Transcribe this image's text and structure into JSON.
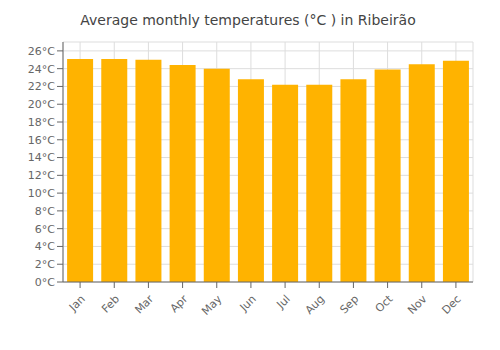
{
  "chart_data": {
    "type": "bar",
    "title": "Average monthly temperatures (°C ) in Ribeirão",
    "categories": [
      "Jan",
      "Feb",
      "Mar",
      "Apr",
      "May",
      "Jun",
      "Jul",
      "Aug",
      "Sep",
      "Oct",
      "Nov",
      "Dec"
    ],
    "values": [
      25.1,
      25.1,
      25.0,
      24.4,
      24.0,
      22.8,
      22.2,
      22.2,
      22.8,
      23.9,
      24.5,
      24.9
    ],
    "color": "#FFB300",
    "ylim": [
      0,
      27
    ],
    "yticks": [
      {
        "value": 0,
        "label": "0°C"
      },
      {
        "value": 2,
        "label": "2°C"
      },
      {
        "value": 4,
        "label": "4°C"
      },
      {
        "value": 6,
        "label": "6°C"
      },
      {
        "value": 8,
        "label": "8°C"
      },
      {
        "value": 10,
        "label": "10°C"
      },
      {
        "value": 12,
        "label": "12°C"
      },
      {
        "value": 14,
        "label": "14°C"
      },
      {
        "value": 16,
        "label": "16°C"
      },
      {
        "value": 18,
        "label": "18°C"
      },
      {
        "value": 20,
        "label": "20°C"
      },
      {
        "value": 22,
        "label": "22°C"
      },
      {
        "value": 24,
        "label": "24°C"
      },
      {
        "value": 26,
        "label": "26°C"
      }
    ],
    "grid": true
  }
}
